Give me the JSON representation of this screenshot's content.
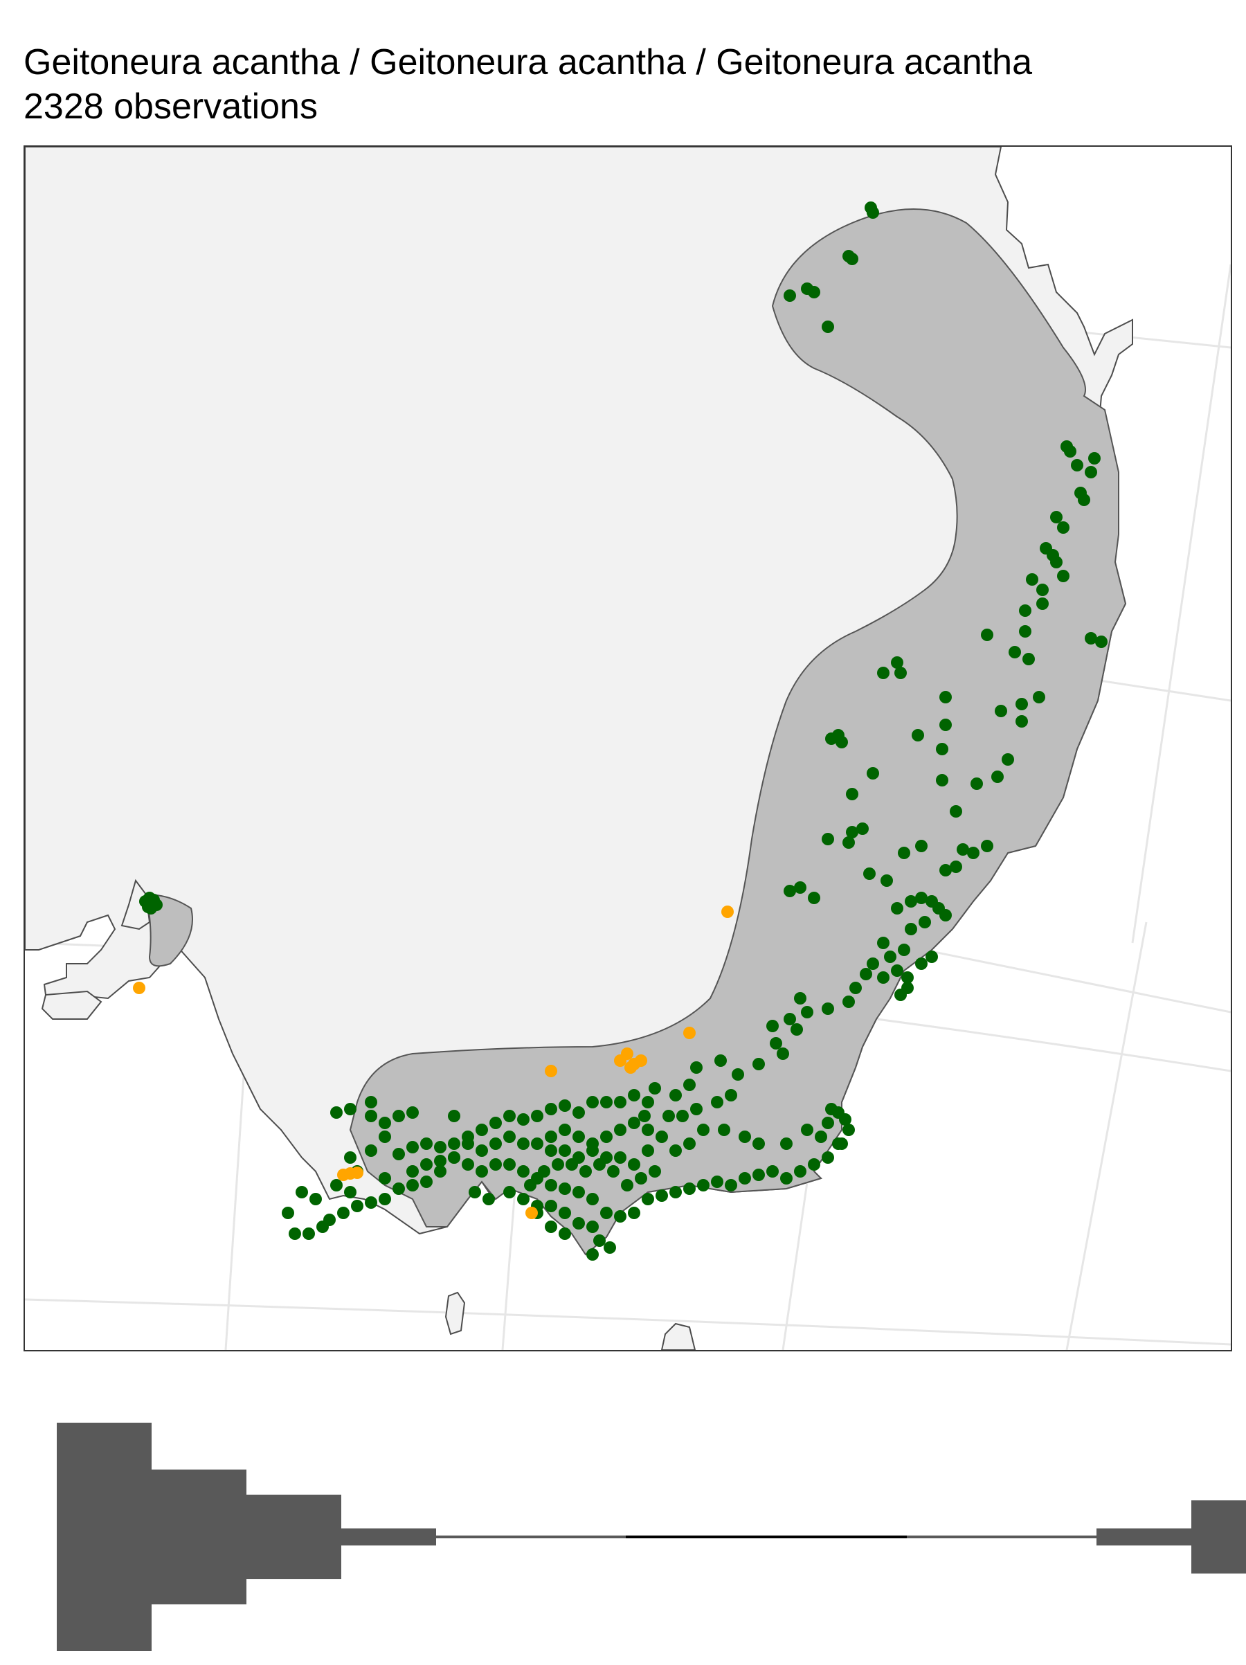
{
  "title": "Geitoneura acantha / Geitoneura acantha / Geitoneura acantha",
  "subtitle": "2328 observations",
  "colors": {
    "land": "#f2f2f2",
    "ocean": "#ffffff",
    "coast": "#4d4d4d",
    "range": "#bebebe",
    "in_range": "#006400",
    "out_range": "#ffa500",
    "graticule": "#e6e6e6",
    "histogram": "#595959"
  },
  "map": {
    "description_id": "occurrence-map",
    "point_categories": [
      "inside-range",
      "outside-range"
    ]
  },
  "histogram": {
    "type": "bar",
    "symmetric": true,
    "left_bins": [
      1.0,
      0.59,
      0.37,
      0.075,
      0.012,
      0.004
    ],
    "right_bins": [
      0.004,
      0.012,
      0.075,
      0.32
    ]
  }
}
